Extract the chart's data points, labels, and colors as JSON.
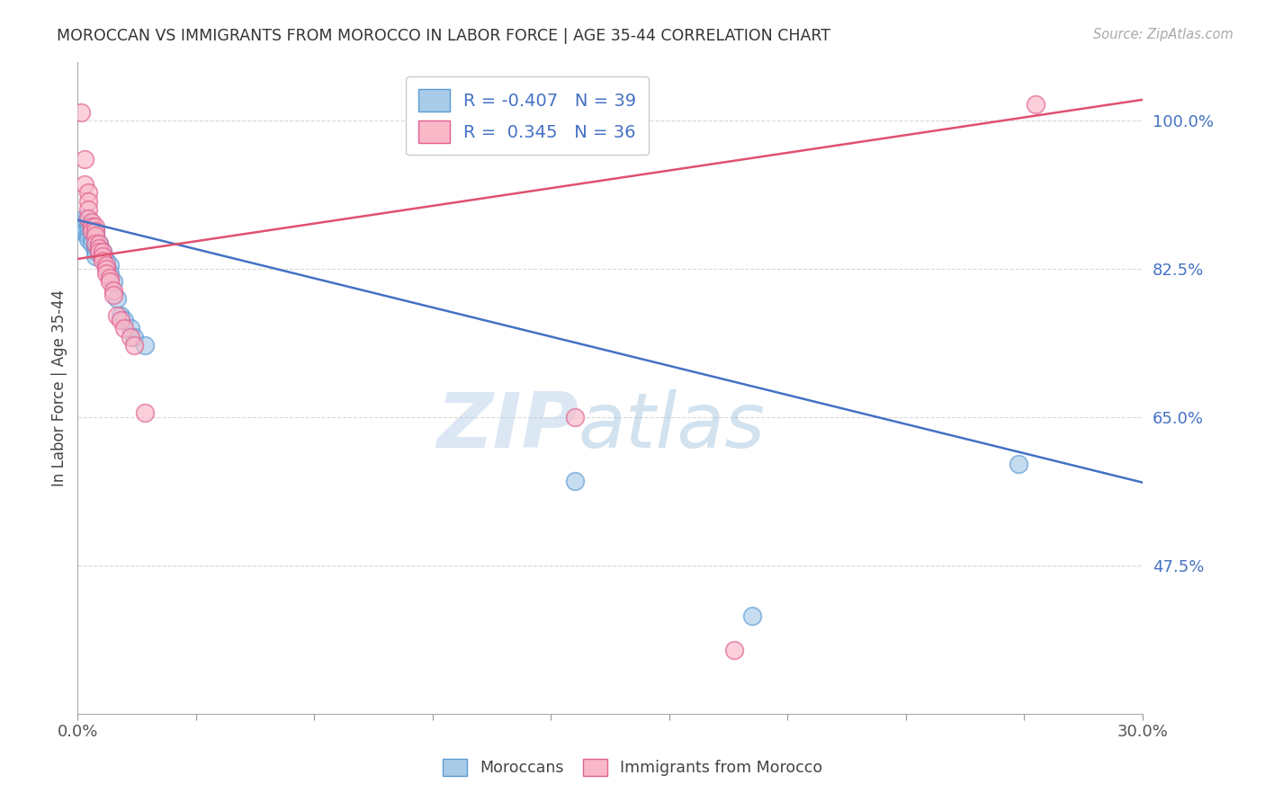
{
  "title": "MOROCCAN VS IMMIGRANTS FROM MOROCCO IN LABOR FORCE | AGE 35-44 CORRELATION CHART",
  "source": "Source: ZipAtlas.com",
  "ylabel": "In Labor Force | Age 35-44",
  "xlim": [
    0.0,
    0.3
  ],
  "ylim": [
    0.3,
    1.07
  ],
  "xticks": [
    0.0,
    0.03333,
    0.06667,
    0.1,
    0.13333,
    0.16667,
    0.2,
    0.23333,
    0.26667,
    0.3
  ],
  "xticklabels_show": [
    "0.0%",
    "30.0%"
  ],
  "yticks": [
    0.475,
    0.65,
    0.825,
    1.0
  ],
  "yticklabels": [
    "47.5%",
    "65.0%",
    "82.5%",
    "100.0%"
  ],
  "blue_R": -0.407,
  "blue_N": 39,
  "pink_R": 0.345,
  "pink_N": 36,
  "blue_color": "#a8cce8",
  "pink_color": "#f9b8c8",
  "blue_edge_color": "#5b9bd5",
  "pink_edge_color": "#e06090",
  "blue_line_color": "#4472c4",
  "pink_line_color": "#e05070",
  "legend_label_blue": "Moroccans",
  "legend_label_pink": "Immigrants from Morocco",
  "blue_trend_x0": 0.0,
  "blue_trend_y0": 0.883,
  "blue_trend_x1": 0.3,
  "blue_trend_y1": 0.573,
  "pink_trend_x0": 0.0,
  "pink_trend_y0": 0.837,
  "pink_trend_x1": 0.3,
  "pink_trend_y1": 1.025,
  "blue_x": [
    0.001,
    0.001,
    0.002,
    0.002,
    0.002,
    0.002,
    0.003,
    0.003,
    0.003,
    0.003,
    0.003,
    0.004,
    0.004,
    0.004,
    0.004,
    0.005,
    0.005,
    0.005,
    0.005,
    0.005,
    0.005,
    0.006,
    0.006,
    0.006,
    0.007,
    0.007,
    0.008,
    0.009,
    0.009,
    0.01,
    0.011,
    0.012,
    0.013,
    0.015,
    0.016,
    0.019,
    0.14,
    0.19,
    0.265
  ],
  "blue_y": [
    0.87,
    0.875,
    0.885,
    0.88,
    0.875,
    0.87,
    0.88,
    0.875,
    0.87,
    0.865,
    0.86,
    0.875,
    0.87,
    0.86,
    0.855,
    0.87,
    0.865,
    0.855,
    0.85,
    0.845,
    0.84,
    0.855,
    0.85,
    0.845,
    0.845,
    0.84,
    0.835,
    0.83,
    0.82,
    0.81,
    0.79,
    0.77,
    0.765,
    0.755,
    0.745,
    0.735,
    0.575,
    0.415,
    0.595
  ],
  "pink_x": [
    0.001,
    0.002,
    0.002,
    0.003,
    0.003,
    0.003,
    0.003,
    0.004,
    0.004,
    0.004,
    0.005,
    0.005,
    0.005,
    0.005,
    0.006,
    0.006,
    0.006,
    0.007,
    0.007,
    0.007,
    0.008,
    0.008,
    0.008,
    0.009,
    0.009,
    0.01,
    0.01,
    0.011,
    0.012,
    0.013,
    0.015,
    0.016,
    0.019,
    0.14,
    0.185,
    0.27
  ],
  "pink_y": [
    1.01,
    0.955,
    0.925,
    0.915,
    0.905,
    0.895,
    0.885,
    0.88,
    0.875,
    0.87,
    0.875,
    0.87,
    0.865,
    0.855,
    0.855,
    0.85,
    0.845,
    0.845,
    0.84,
    0.835,
    0.83,
    0.825,
    0.82,
    0.815,
    0.81,
    0.8,
    0.795,
    0.77,
    0.765,
    0.755,
    0.745,
    0.735,
    0.655,
    0.65,
    0.375,
    1.02
  ],
  "watermark_zip": "ZIP",
  "watermark_atlas": "atlas",
  "background_color": "#ffffff",
  "grid_color": "#d8d8d8"
}
